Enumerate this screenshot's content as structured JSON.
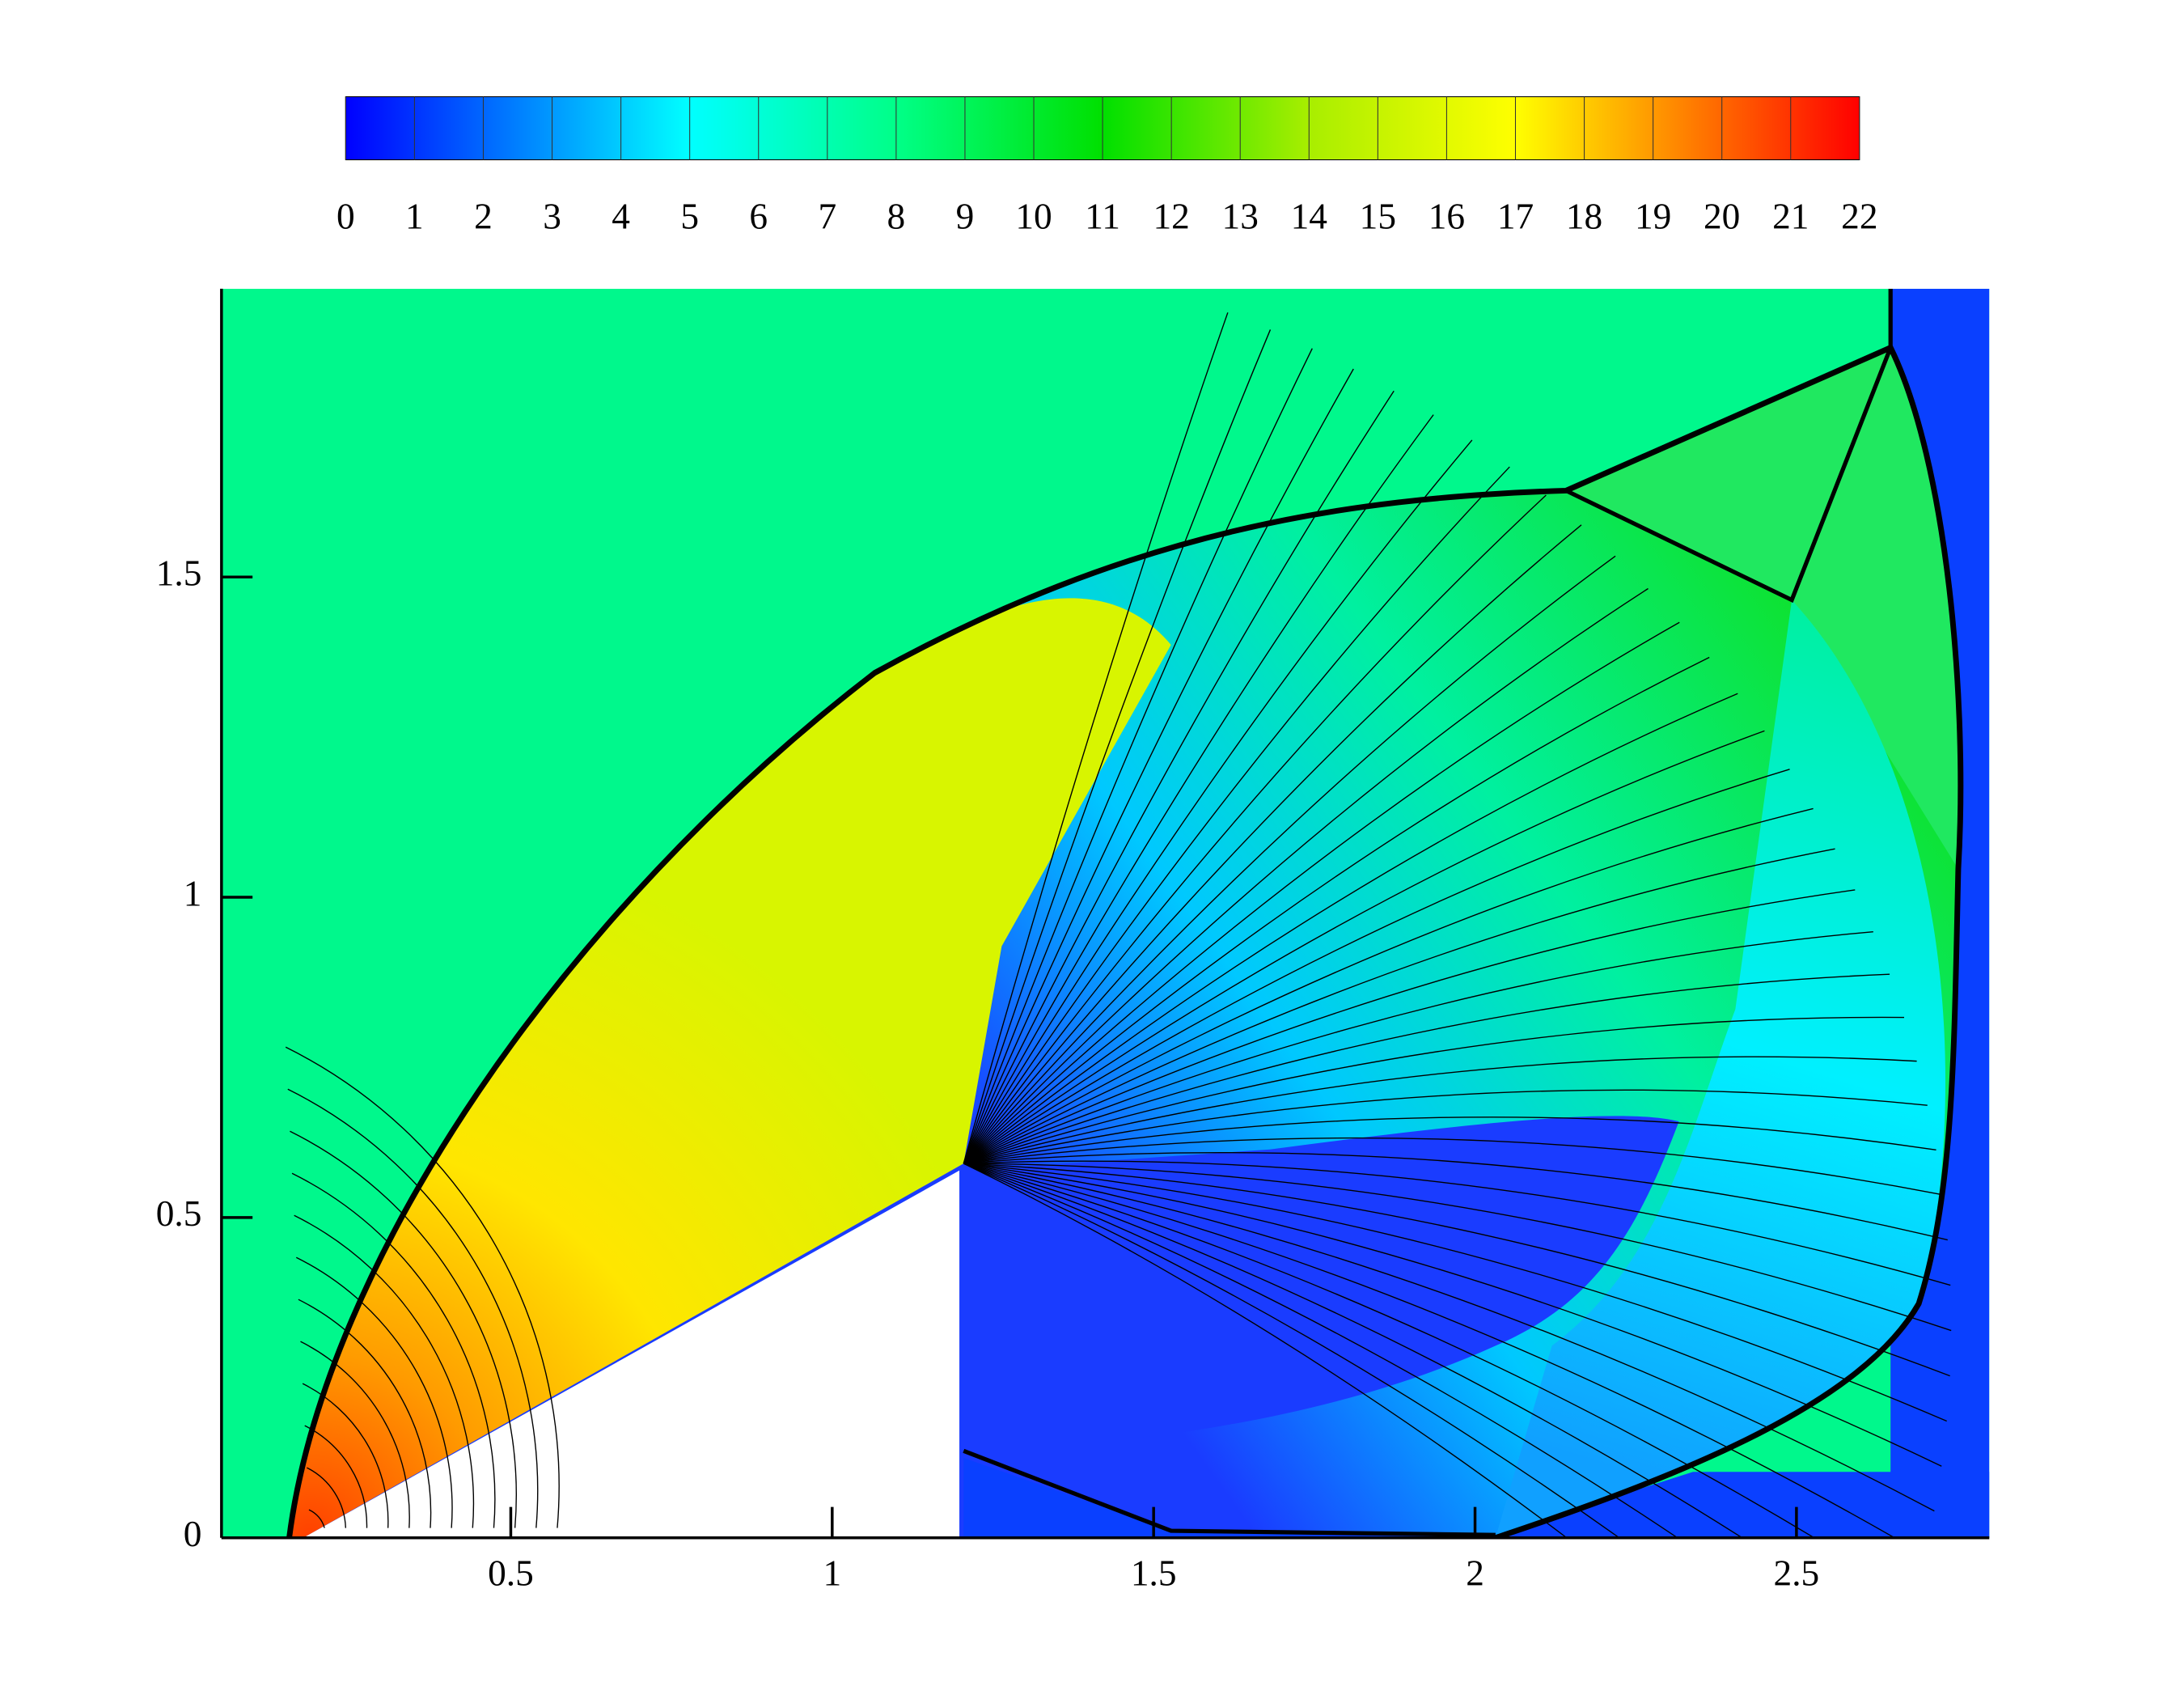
{
  "chart_data": {
    "type": "contour",
    "colorbar": {
      "lim": [
        0,
        22
      ],
      "ticks": [
        0,
        1,
        2,
        3,
        4,
        5,
        6,
        7,
        8,
        9,
        10,
        11,
        12,
        13,
        14,
        15,
        16,
        17,
        18,
        19,
        20,
        21,
        22
      ],
      "colormap": [
        {
          "value": 0,
          "color": "#0000ff"
        },
        {
          "value": 5,
          "color": "#00ffff"
        },
        {
          "value": 8,
          "color": "#00ff88"
        },
        {
          "value": 11,
          "color": "#00e000"
        },
        {
          "value": 14,
          "color": "#a8ee00"
        },
        {
          "value": 17,
          "color": "#ffff00"
        },
        {
          "value": 22,
          "color": "#ff0000"
        }
      ]
    },
    "xlim": [
      0.05,
      2.8
    ],
    "ylim": [
      0,
      1.95
    ],
    "xticks": [
      0.5,
      1,
      1.5,
      2,
      2.5
    ],
    "yticks": [
      0,
      0.5,
      1,
      1.5
    ]
  }
}
